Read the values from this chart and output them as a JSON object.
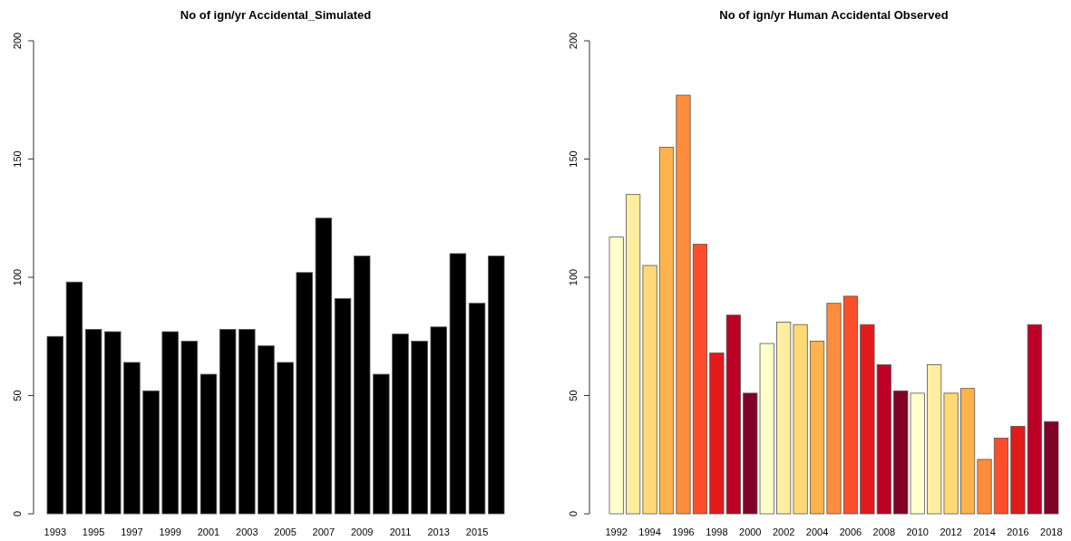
{
  "chart_data": [
    {
      "type": "bar",
      "title": "No of ign/yr Accidental_Simulated",
      "categories": [
        "1993",
        null,
        "1995",
        null,
        "1997",
        null,
        "1999",
        null,
        "2001",
        null,
        "2003",
        null,
        "2005",
        null,
        "2007",
        null,
        "2009",
        null,
        "2011",
        null,
        "2013",
        null,
        "2015",
        null
      ],
      "values": [
        75,
        98,
        78,
        77,
        64,
        52,
        77,
        73,
        59,
        78,
        78,
        71,
        64,
        102,
        125,
        91,
        109,
        59,
        76,
        73,
        79,
        110,
        89,
        109
      ],
      "color": "#000000",
      "ylim": [
        0,
        200
      ],
      "yticks": [
        0,
        50,
        100,
        150,
        200
      ],
      "grid": false
    },
    {
      "type": "bar",
      "title": "No of ign/yr Human Accidental Observed",
      "categories": [
        "1992",
        null,
        "1994",
        null,
        "1996",
        null,
        "1998",
        null,
        "2000",
        null,
        "2002",
        null,
        "2004",
        null,
        "2006",
        null,
        "2008",
        null,
        "2010",
        null,
        "2012",
        null,
        "2014",
        null,
        "2016",
        null,
        "2018"
      ],
      "values": [
        117,
        135,
        105,
        155,
        177,
        114,
        68,
        84,
        51,
        72,
        81,
        80,
        73,
        89,
        92,
        80,
        63,
        52,
        51,
        63,
        51,
        53,
        23,
        32,
        37,
        80,
        39
      ],
      "colors": [
        "#ffffcc",
        "#ffeda0",
        "#fed976",
        "#feb24c",
        "#fd8d3c",
        "#fc4e2a",
        "#e31a1c",
        "#bd0026",
        "#800026",
        "#ffffcc",
        "#ffeda0",
        "#fed976",
        "#feb24c",
        "#fd8d3c",
        "#fc4e2a",
        "#e31a1c",
        "#bd0026",
        "#800026",
        "#ffffcc",
        "#ffeda0",
        "#fed976",
        "#feb24c",
        "#fd8d3c",
        "#fc4e2a",
        "#e31a1c",
        "#bd0026",
        "#800026"
      ],
      "ylim": [
        0,
        200
      ],
      "yticks": [
        0,
        50,
        100,
        150,
        200
      ],
      "grid": false
    }
  ]
}
